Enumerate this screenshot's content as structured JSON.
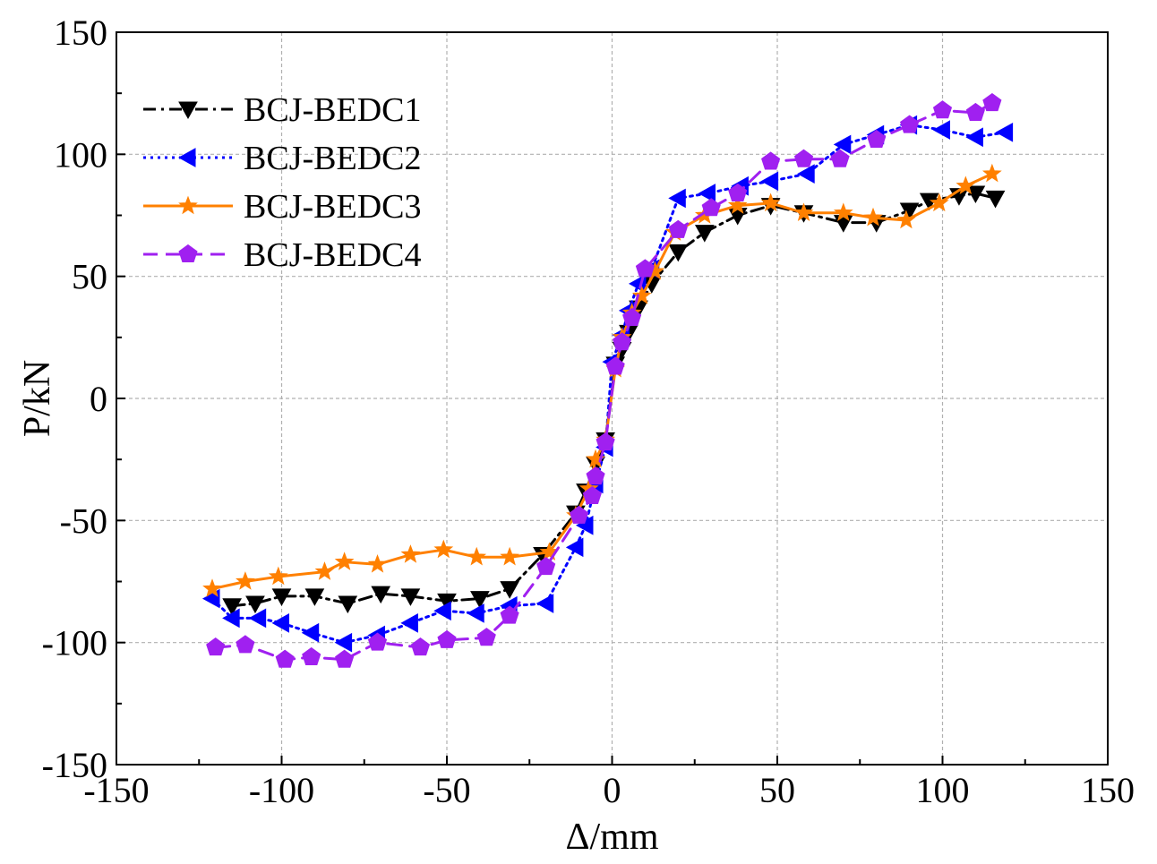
{
  "chart_data": {
    "type": "line",
    "title": "",
    "xlabel": "Δ/mm",
    "ylabel": "P/kN",
    "xlim": [
      -150,
      150
    ],
    "ylim": [
      -150,
      150
    ],
    "xticks": [
      -150,
      -100,
      -50,
      0,
      50,
      100,
      150
    ],
    "yticks": [
      -150,
      -100,
      -50,
      0,
      50,
      100,
      150
    ],
    "grid": true,
    "legend_position": "top-left",
    "series": [
      {
        "name": "BCJ-BEDC1",
        "color": "#000000",
        "dash": "dashdot",
        "marker": "triangle-down",
        "points": [
          [
            -115,
            -85
          ],
          [
            -108,
            -84
          ],
          [
            -100,
            -81
          ],
          [
            -90,
            -81
          ],
          [
            -80,
            -84
          ],
          [
            -70,
            -80
          ],
          [
            -61,
            -81
          ],
          [
            -50,
            -83
          ],
          [
            -40,
            -82
          ],
          [
            -31,
            -78
          ],
          [
            -21,
            -64
          ],
          [
            -11,
            -47
          ],
          [
            -8,
            -38
          ],
          [
            -5,
            -27
          ],
          [
            -2,
            -17
          ],
          [
            1,
            14
          ],
          [
            3,
            20
          ],
          [
            5,
            27
          ],
          [
            8,
            37
          ],
          [
            12,
            47
          ],
          [
            20,
            60
          ],
          [
            28,
            68
          ],
          [
            38,
            75
          ],
          [
            48,
            79
          ],
          [
            58,
            76
          ],
          [
            70,
            72
          ],
          [
            80,
            72
          ],
          [
            90,
            77
          ],
          [
            96,
            81
          ],
          [
            105,
            83
          ],
          [
            110,
            84
          ],
          [
            116,
            82
          ]
        ]
      },
      {
        "name": "BCJ-BEDC2",
        "color": "#0000ff",
        "dash": "dotted",
        "marker": "triangle-left",
        "points": [
          [
            -121,
            -82
          ],
          [
            -115,
            -90
          ],
          [
            -107,
            -90
          ],
          [
            -100,
            -92
          ],
          [
            -91,
            -96
          ],
          [
            -81,
            -100
          ],
          [
            -71,
            -97
          ],
          [
            -61,
            -92
          ],
          [
            -51,
            -87
          ],
          [
            -41,
            -88
          ],
          [
            -31,
            -85
          ],
          [
            -20,
            -84
          ],
          [
            -11,
            -61
          ],
          [
            -8,
            -52
          ],
          [
            -5,
            -35
          ],
          [
            -2,
            -20
          ],
          [
            0,
            15
          ],
          [
            3,
            26
          ],
          [
            5,
            36
          ],
          [
            8,
            47
          ],
          [
            12,
            53
          ],
          [
            20,
            82
          ],
          [
            29,
            84
          ],
          [
            39,
            87
          ],
          [
            48,
            89
          ],
          [
            59,
            92
          ],
          [
            70,
            104
          ],
          [
            80,
            108
          ],
          [
            90,
            112
          ],
          [
            100,
            110
          ],
          [
            110,
            107
          ],
          [
            119,
            109
          ]
        ]
      },
      {
        "name": "BCJ-BEDC3",
        "color": "#ff8000",
        "dash": "solid",
        "marker": "star",
        "points": [
          [
            -121,
            -78
          ],
          [
            -111,
            -75
          ],
          [
            -101,
            -73
          ],
          [
            -87,
            -71
          ],
          [
            -81,
            -67
          ],
          [
            -71,
            -68
          ],
          [
            -61,
            -64
          ],
          [
            -51,
            -62
          ],
          [
            -41,
            -65
          ],
          [
            -31,
            -65
          ],
          [
            -19,
            -63
          ],
          [
            -11,
            -48
          ],
          [
            -7,
            -37
          ],
          [
            -5,
            -25
          ],
          [
            -2,
            -17
          ],
          [
            1,
            12
          ],
          [
            3,
            25
          ],
          [
            6,
            35
          ],
          [
            9,
            42
          ],
          [
            13,
            52
          ],
          [
            19,
            68
          ],
          [
            28,
            75
          ],
          [
            38,
            79
          ],
          [
            48,
            80
          ],
          [
            58,
            76
          ],
          [
            70,
            76
          ],
          [
            79,
            74
          ],
          [
            89,
            73
          ],
          [
            99,
            80
          ],
          [
            107,
            87
          ],
          [
            115,
            92
          ]
        ]
      },
      {
        "name": "BCJ-BEDC4",
        "color": "#a020f0",
        "dash": "dashed",
        "marker": "pentagon",
        "points": [
          [
            -120,
            -102
          ],
          [
            -111,
            -101
          ],
          [
            -99,
            -107
          ],
          [
            -91,
            -106
          ],
          [
            -81,
            -107
          ],
          [
            -71,
            -100
          ],
          [
            -58,
            -102
          ],
          [
            -50,
            -99
          ],
          [
            -38,
            -98
          ],
          [
            -31,
            -89
          ],
          [
            -20,
            -69
          ],
          [
            -10,
            -48
          ],
          [
            -6,
            -40
          ],
          [
            -5,
            -32
          ],
          [
            -2,
            -18
          ],
          [
            1,
            13
          ],
          [
            3,
            23
          ],
          [
            6,
            33
          ],
          [
            10,
            53
          ],
          [
            20,
            69
          ],
          [
            30,
            78
          ],
          [
            38,
            84
          ],
          [
            48,
            97
          ],
          [
            58,
            98
          ],
          [
            69,
            98
          ],
          [
            80,
            106
          ],
          [
            90,
            112
          ],
          [
            100,
            118
          ],
          [
            110,
            117
          ],
          [
            115,
            121
          ]
        ]
      }
    ]
  }
}
